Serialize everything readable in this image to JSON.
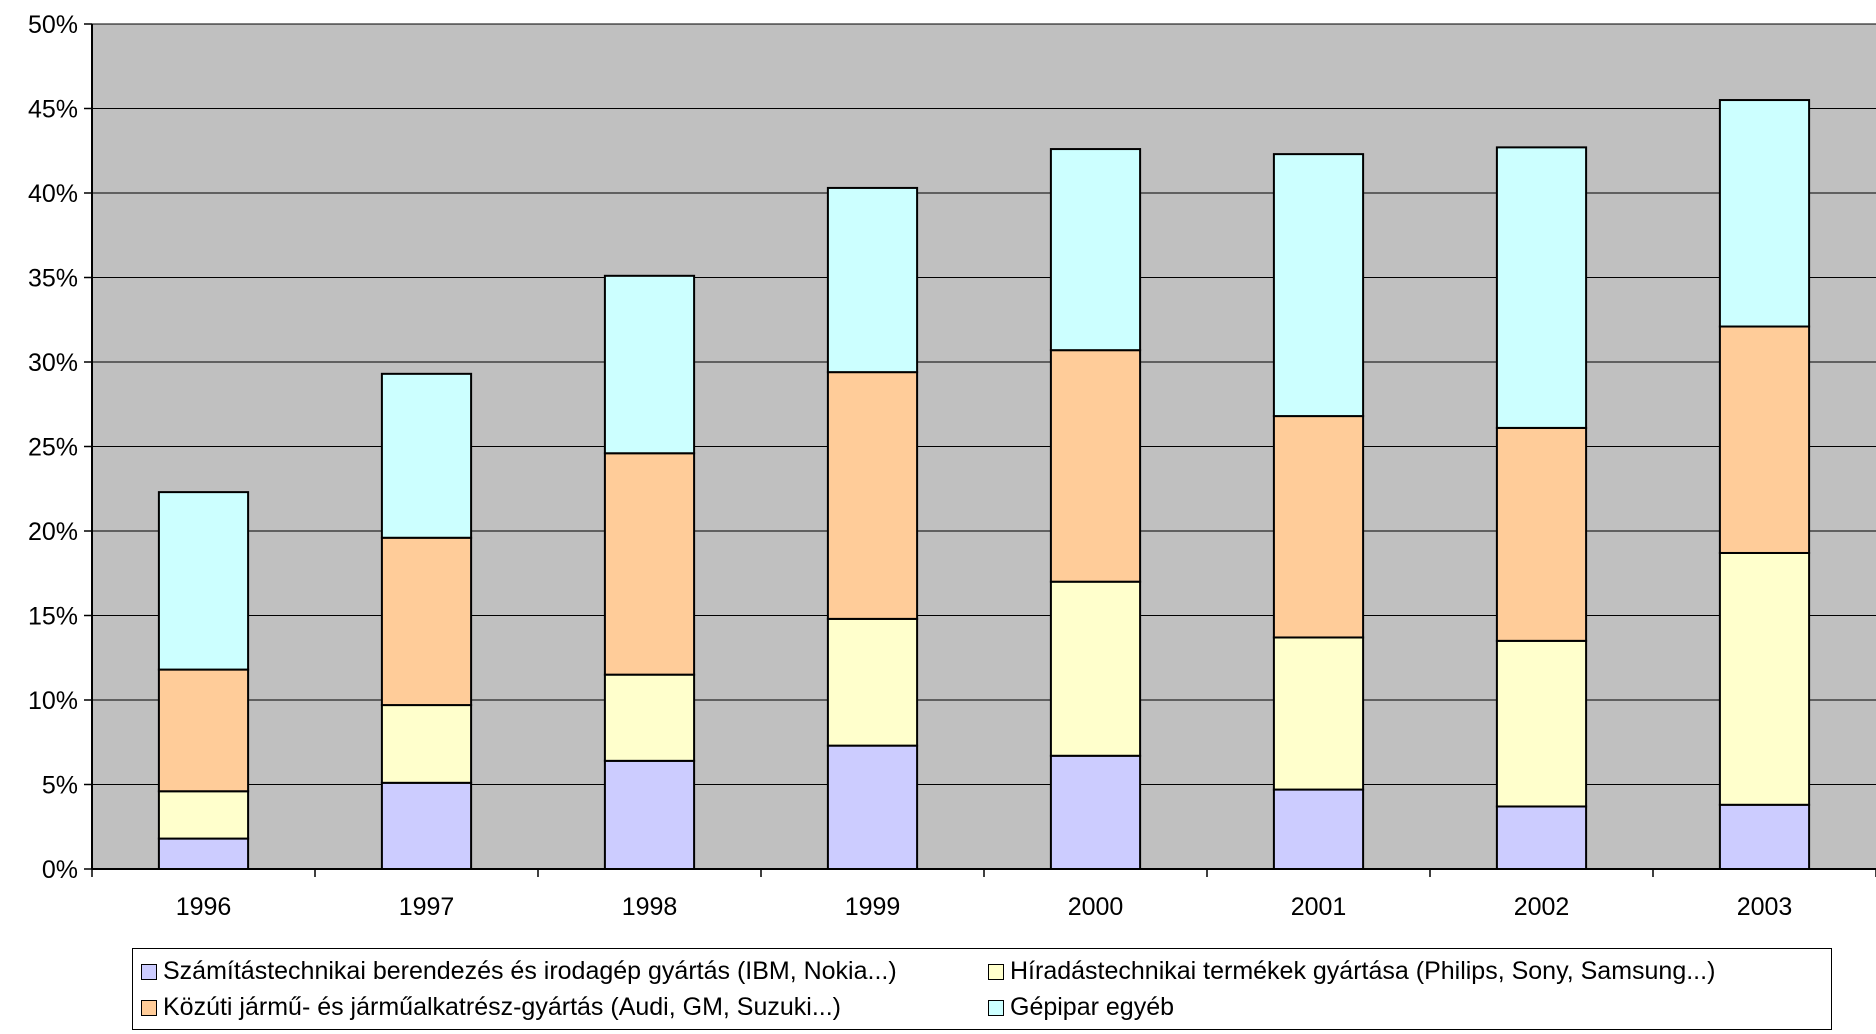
{
  "chart_data": {
    "type": "bar",
    "stacked": true,
    "title": "",
    "xlabel": "",
    "ylabel": "",
    "categories": [
      "1996",
      "1997",
      "1998",
      "1999",
      "2000",
      "2001",
      "2002",
      "2003"
    ],
    "ylim": [
      0,
      50
    ],
    "yticks": [
      "0%",
      "5%",
      "10%",
      "15%",
      "20%",
      "25%",
      "30%",
      "35%",
      "40%",
      "45%",
      "50%"
    ],
    "grid": true,
    "legend_position": "bottom",
    "plot_background": "#C0C0C0",
    "series": [
      {
        "name": "Számítástechnikai berendezés és irodagép gyártás (IBM, Nokia...)",
        "color": "#CCCCFF",
        "values": [
          1.8,
          5.1,
          6.4,
          7.3,
          6.7,
          4.7,
          3.7,
          3.8
        ]
      },
      {
        "name": "Híradástechnikai termékek gyártása (Philips, Sony, Samsung...)",
        "color": "#FFFFCC",
        "values": [
          2.8,
          4.6,
          5.1,
          7.5,
          10.3,
          9.0,
          9.8,
          14.9
        ]
      },
      {
        "name": "Közúti jármű- és járműalkatrész-gyártás (Audi, GM, Suzuki...)",
        "color": "#FFCC99",
        "values": [
          7.2,
          9.9,
          13.1,
          14.6,
          13.7,
          13.1,
          12.6,
          13.4
        ]
      },
      {
        "name": "Gépipar egyéb",
        "color": "#CCFFFF",
        "values": [
          10.5,
          9.7,
          10.5,
          10.9,
          11.9,
          15.5,
          16.6,
          13.4
        ]
      }
    ]
  }
}
